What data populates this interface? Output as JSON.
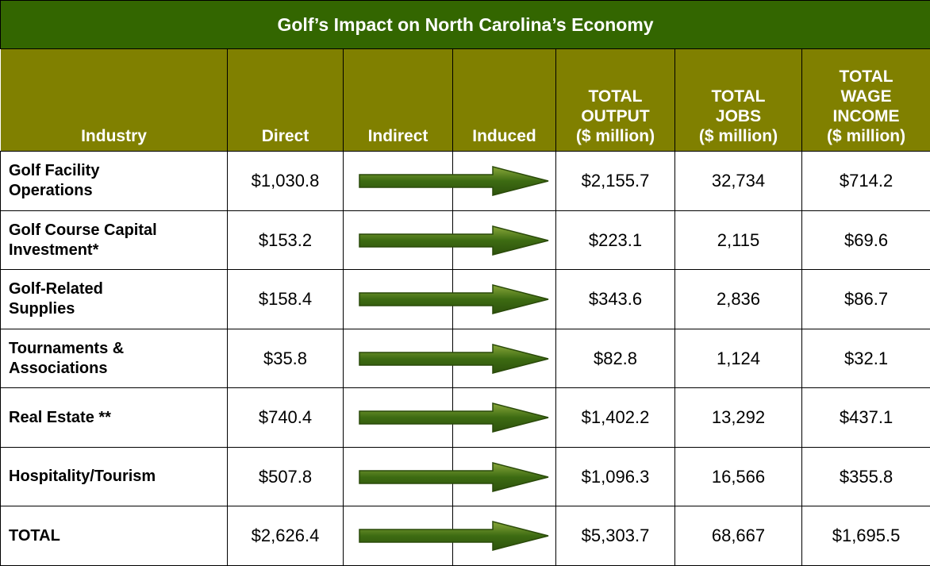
{
  "header": {
    "title": "Golf’s Impact on North Carolina’s Economy"
  },
  "table": {
    "columns": [
      [
        "Industry"
      ],
      [
        "Direct"
      ],
      [
        "Indirect"
      ],
      [
        "Induced"
      ],
      [
        "TOTAL",
        "OUTPUT",
        "($ million)"
      ],
      [
        "TOTAL",
        "JOBS",
        "($ million)"
      ],
      [
        "TOTAL",
        "WAGE",
        "INCOME",
        "($ million)"
      ]
    ],
    "rows": [
      {
        "industry": [
          "Golf Facility",
          "Operations"
        ],
        "direct": "$1,030.8",
        "output": "$2,155.7",
        "jobs": "32,734",
        "wage": "$714.2"
      },
      {
        "industry": [
          "Golf Course  Capital",
          "Investment*"
        ],
        "direct": "$153.2",
        "output": "$223.1",
        "jobs": "2,115",
        "wage": "$69.6"
      },
      {
        "industry": [
          "Golf-Related",
          "Supplies"
        ],
        "direct": "$158.4",
        "output": "$343.6",
        "jobs": "2,836",
        "wage": "$86.7"
      },
      {
        "industry": [
          "Tournaments &",
          "Associations"
        ],
        "direct": "$35.8",
        "output": "$82.8",
        "jobs": "1,124",
        "wage": "$32.1"
      },
      {
        "industry": [
          "Real Estate **"
        ],
        "direct": "$740.4",
        "output": "$1,402.2",
        "jobs": "13,292",
        "wage": "$437.1"
      },
      {
        "industry": [
          "Hospitality/Tourism"
        ],
        "direct": "$507.8",
        "output": "$1,096.3",
        "jobs": "16,566",
        "wage": "$355.8"
      },
      {
        "industry": [
          "TOTAL"
        ],
        "direct": "$2,626.4",
        "output": "$5,303.7",
        "jobs": "68,667",
        "wage": "$1,695.5"
      }
    ]
  }
}
